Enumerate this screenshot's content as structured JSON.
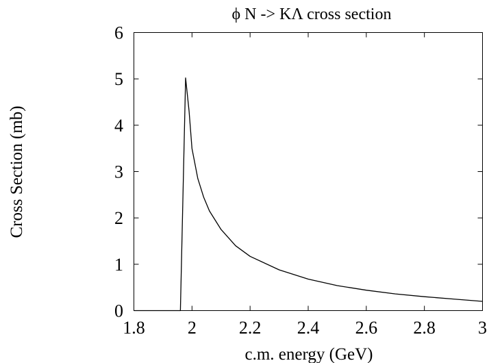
{
  "chart_data": {
    "type": "line",
    "title": "ϕ N -> KΛ cross section",
    "xlabel": "c.m. energy (GeV)",
    "ylabel": "Cross Section (mb)",
    "xlim": [
      1.8,
      3.0
    ],
    "ylim": [
      0,
      6
    ],
    "xticks": [
      1.8,
      2.0,
      2.2,
      2.4,
      2.6,
      2.8,
      3.0
    ],
    "xtick_labels": [
      "1.8",
      "2",
      "2.2",
      "2.4",
      "2.6",
      "2.8",
      "3"
    ],
    "yticks": [
      0,
      1,
      2,
      3,
      4,
      5,
      6
    ],
    "ytick_labels": [
      "0",
      "1",
      "2",
      "3",
      "4",
      "5",
      "6"
    ],
    "grid": false,
    "legend": "none",
    "series": [
      {
        "color": "#000000",
        "x": [
          1.8,
          1.96,
          1.978,
          1.99,
          2.0,
          2.02,
          2.04,
          2.06,
          2.1,
          2.15,
          2.2,
          2.3,
          2.4,
          2.5,
          2.6,
          2.7,
          2.8,
          2.9,
          3.0
        ],
        "y": [
          0,
          0,
          5.02,
          4.3,
          3.5,
          2.85,
          2.45,
          2.15,
          1.75,
          1.4,
          1.17,
          0.88,
          0.68,
          0.54,
          0.44,
          0.36,
          0.3,
          0.25,
          0.2
        ]
      }
    ]
  }
}
